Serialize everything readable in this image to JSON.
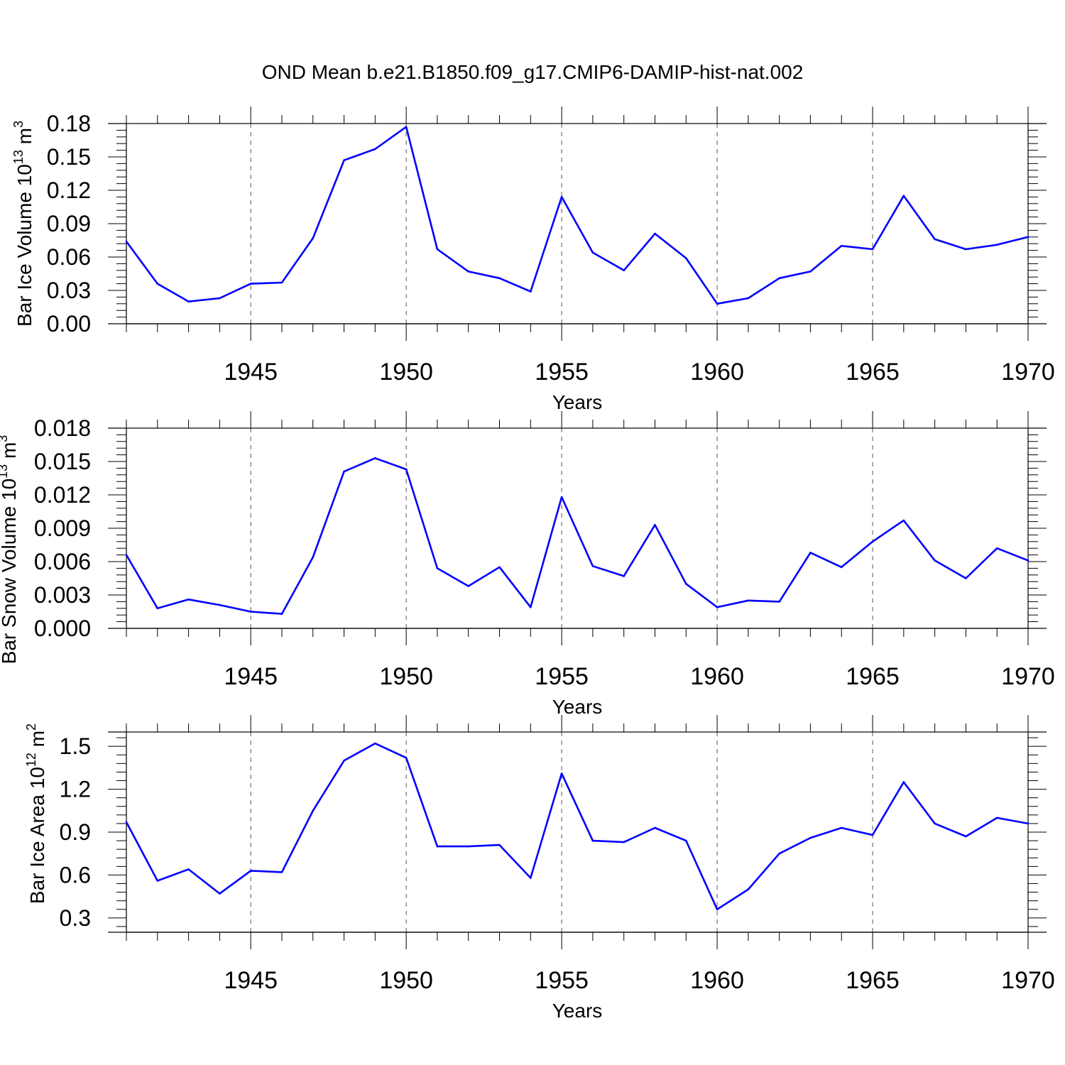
{
  "title": "OND Mean b.e21.B1850.f09_g17.CMIP6-DAMIP-hist-nat.002",
  "line_color": "#0000ff",
  "chart_data": [
    {
      "type": "line",
      "ylabel_main": "Bar Ice Volume 10",
      "ylabel_exp": "13",
      "ylabel_unit": " m",
      "ylabel_unit_exp": "3",
      "xlabel": "Years",
      "xlim": [
        1941,
        1970
      ],
      "ylim": [
        0.0,
        0.18
      ],
      "yticks": [
        "0.00",
        "0.03",
        "0.06",
        "0.09",
        "0.12",
        "0.15",
        "0.18"
      ],
      "xticks": [
        "1945",
        "1950",
        "1955",
        "1960",
        "1965",
        "1970"
      ],
      "x": [
        1941,
        1942,
        1943,
        1944,
        1945,
        1946,
        1947,
        1948,
        1949,
        1950,
        1951,
        1952,
        1953,
        1954,
        1955,
        1956,
        1957,
        1958,
        1959,
        1960,
        1961,
        1962,
        1963,
        1964,
        1965,
        1966,
        1967,
        1968,
        1969,
        1970
      ],
      "values": [
        0.074,
        0.036,
        0.02,
        0.023,
        0.036,
        0.037,
        0.077,
        0.147,
        0.157,
        0.177,
        0.067,
        0.047,
        0.041,
        0.029,
        0.114,
        0.064,
        0.048,
        0.081,
        0.059,
        0.018,
        0.023,
        0.041,
        0.047,
        0.07,
        0.067,
        0.115,
        0.076,
        0.067,
        0.071,
        0.078
      ]
    },
    {
      "type": "line",
      "ylabel_main": "Bar Snow Volume 10",
      "ylabel_exp": "13",
      "ylabel_unit": " m",
      "ylabel_unit_exp": "3",
      "xlabel": "Years",
      "xlim": [
        1941,
        1970
      ],
      "ylim": [
        0.0,
        0.018
      ],
      "yticks": [
        "0.000",
        "0.003",
        "0.006",
        "0.009",
        "0.012",
        "0.015",
        "0.018"
      ],
      "xticks": [
        "1945",
        "1950",
        "1955",
        "1960",
        "1965",
        "1970"
      ],
      "x": [
        1941,
        1942,
        1943,
        1944,
        1945,
        1946,
        1947,
        1948,
        1949,
        1950,
        1951,
        1952,
        1953,
        1954,
        1955,
        1956,
        1957,
        1958,
        1959,
        1960,
        1961,
        1962,
        1963,
        1964,
        1965,
        1966,
        1967,
        1968,
        1969,
        1970
      ],
      "values": [
        0.0066,
        0.0018,
        0.0026,
        0.0021,
        0.0015,
        0.0013,
        0.0064,
        0.0141,
        0.0153,
        0.0143,
        0.0054,
        0.0038,
        0.0055,
        0.0019,
        0.0118,
        0.0056,
        0.0047,
        0.0093,
        0.004,
        0.0019,
        0.0025,
        0.0024,
        0.0068,
        0.0055,
        0.0078,
        0.0097,
        0.0061,
        0.0045,
        0.0072,
        0.0061
      ]
    },
    {
      "type": "line",
      "ylabel_main": "Bar Ice Area 10",
      "ylabel_exp": "12",
      "ylabel_unit": " m",
      "ylabel_unit_exp": "2",
      "xlabel": "Years",
      "xlim": [
        1941,
        1970
      ],
      "ylim": [
        0.2,
        1.6
      ],
      "yticks": [
        "0.3",
        "0.6",
        "0.9",
        "1.2",
        "1.5"
      ],
      "xticks": [
        "1945",
        "1950",
        "1955",
        "1960",
        "1965",
        "1970"
      ],
      "x": [
        1941,
        1942,
        1943,
        1944,
        1945,
        1946,
        1947,
        1948,
        1949,
        1950,
        1951,
        1952,
        1953,
        1954,
        1955,
        1956,
        1957,
        1958,
        1959,
        1960,
        1961,
        1962,
        1963,
        1964,
        1965,
        1966,
        1967,
        1968,
        1969,
        1970
      ],
      "values": [
        0.97,
        0.56,
        0.64,
        0.47,
        0.63,
        0.62,
        1.05,
        1.4,
        1.52,
        1.42,
        0.8,
        0.8,
        0.81,
        0.58,
        1.31,
        0.84,
        0.83,
        0.93,
        0.84,
        0.36,
        0.5,
        0.75,
        0.86,
        0.93,
        0.88,
        1.25,
        0.96,
        0.87,
        1.0,
        0.96
      ]
    }
  ]
}
